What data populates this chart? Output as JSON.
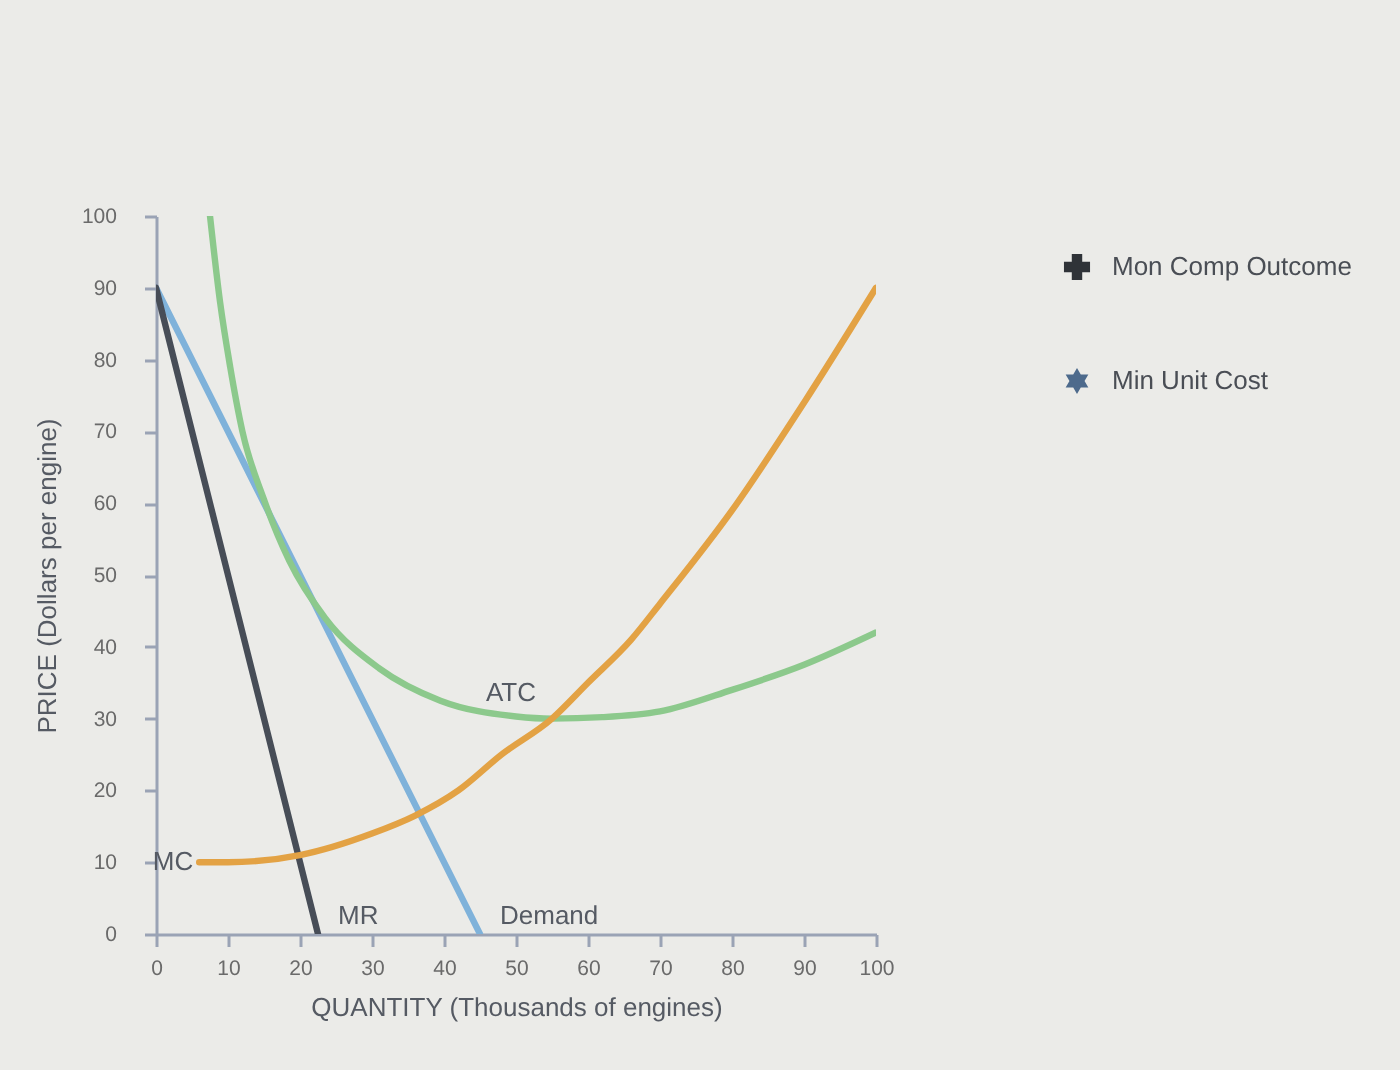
{
  "chart_data": {
    "type": "line",
    "xlabel": "QUANTITY (Thousands of engines)",
    "ylabel": "PRICE (Dollars per engine)",
    "xlim": [
      0,
      100
    ],
    "ylim": [
      0,
      100
    ],
    "xticks": [
      0,
      10,
      20,
      30,
      40,
      50,
      60,
      70,
      80,
      90,
      100
    ],
    "yticks": [
      0,
      10,
      20,
      30,
      40,
      50,
      60,
      70,
      80,
      90,
      100
    ],
    "grid": false,
    "legend": "right",
    "series": [
      {
        "name": "Demand",
        "color": "#7fb2da",
        "x": [
          0,
          45
        ],
        "values": [
          90,
          0
        ]
      },
      {
        "name": "MR",
        "color": "#474d57",
        "x": [
          0,
          22.5
        ],
        "values": [
          90,
          0
        ]
      },
      {
        "name": "ATC",
        "color": "#8cc98c",
        "x": [
          7.5,
          8.9,
          10.3,
          12,
          15,
          18.5,
          23.5,
          31,
          39.5,
          50,
          55,
          62,
          70,
          80,
          90,
          100
        ],
        "values": [
          100,
          88,
          79,
          70,
          60.5,
          52,
          44,
          37,
          32.5,
          30.3,
          30,
          30.2,
          31,
          34,
          37.5,
          42
        ]
      },
      {
        "name": "MC",
        "color": "#e3a244",
        "x": [
          6,
          10,
          20,
          30,
          36,
          42,
          48,
          55,
          60,
          66,
          70,
          80,
          90,
          100
        ],
        "values": [
          10,
          10,
          11,
          14,
          16.5,
          20,
          25,
          30,
          35,
          41,
          46,
          59,
          74,
          90
        ]
      },
      {
        "type": "scatter",
        "name": "Mon Comp Outcome",
        "color": "#2f3338",
        "marker": "cross"
      },
      {
        "type": "scatter",
        "name": "Min Unit Cost",
        "color": "#4d6a8c",
        "marker": "star"
      }
    ]
  }
}
